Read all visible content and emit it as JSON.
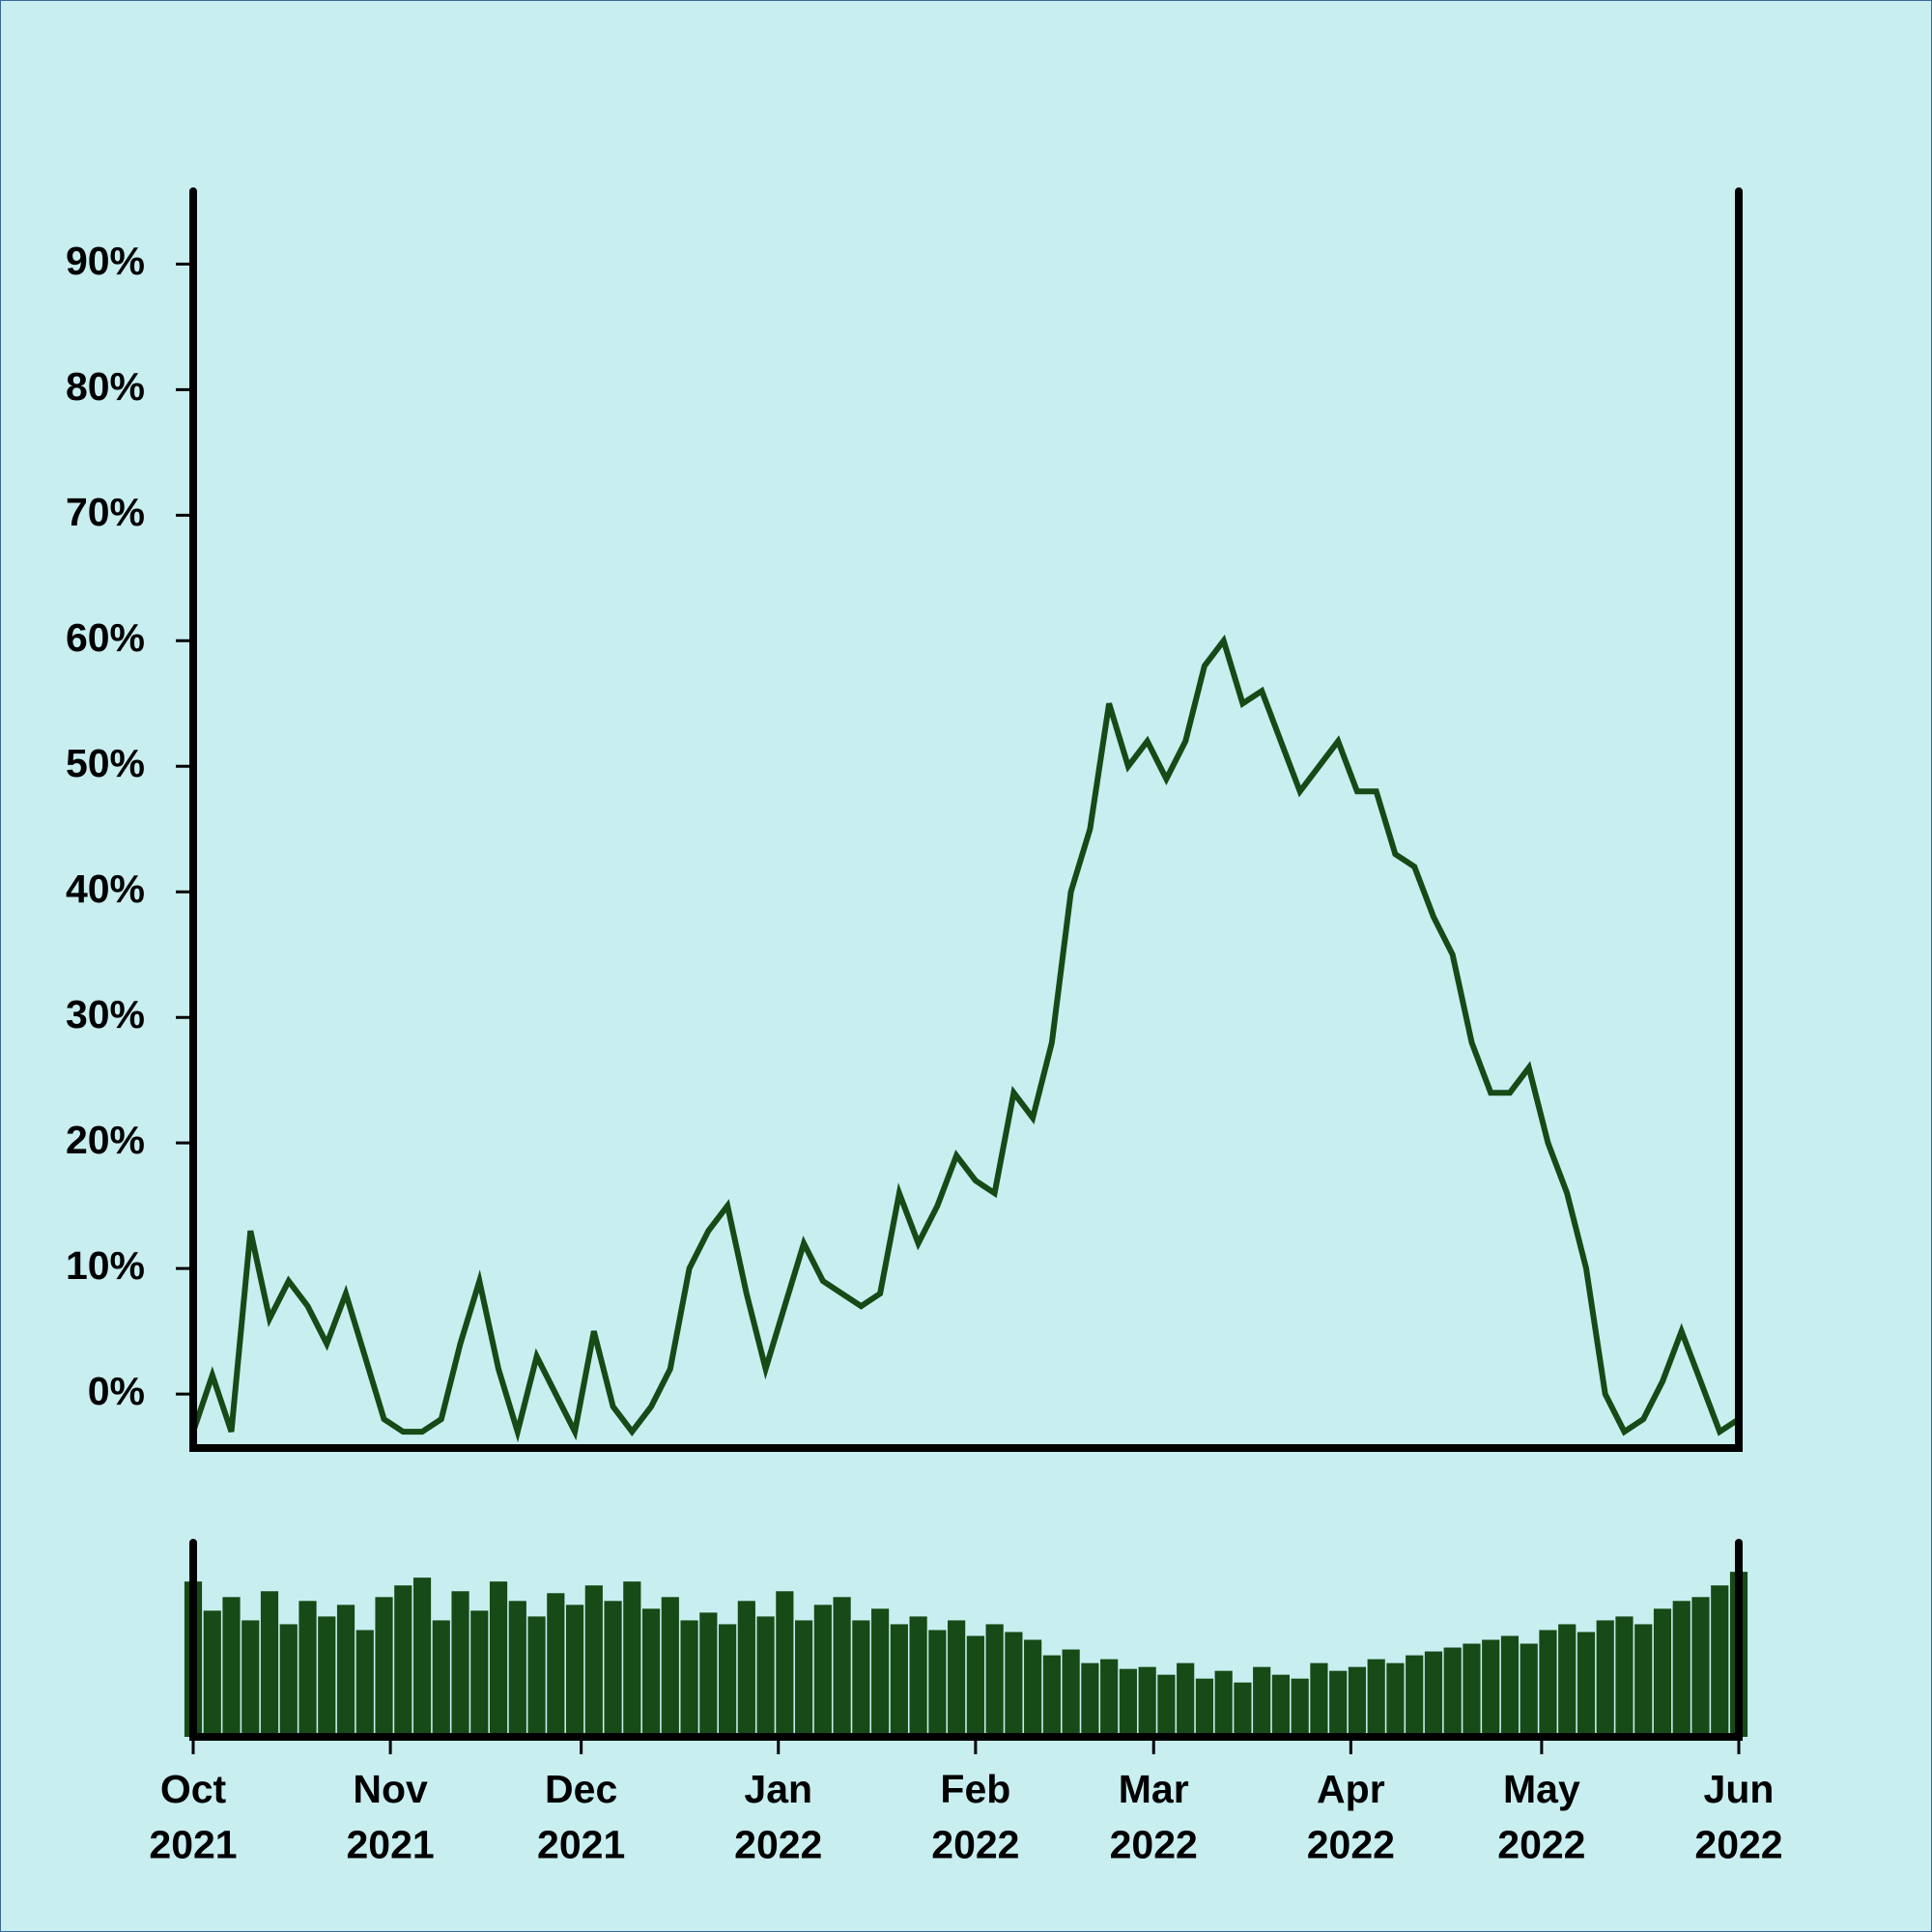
{
  "chart_data": [
    {
      "type": "line",
      "color": "#164a16",
      "x": [
        0,
        3,
        6,
        9,
        12,
        15,
        18,
        21,
        24,
        27,
        30,
        33,
        36,
        39,
        42,
        45,
        48,
        51,
        54,
        57,
        60,
        63,
        66,
        69,
        72,
        75,
        78,
        81,
        84,
        87,
        90,
        93,
        96,
        99,
        102,
        105,
        108,
        111,
        114,
        117,
        120,
        123,
        126,
        129,
        132,
        135,
        138,
        141,
        144,
        147,
        150,
        153,
        156,
        159,
        162,
        165,
        168,
        171,
        174,
        177,
        180,
        183,
        186,
        189,
        192,
        195,
        198,
        201,
        204,
        207,
        210,
        213,
        216,
        219,
        222,
        225,
        228,
        231,
        234,
        237,
        240,
        243
      ],
      "values": [
        -3,
        1.5,
        -3,
        13,
        6,
        9,
        7,
        4,
        8,
        3,
        -2,
        -3,
        -3,
        -2,
        4,
        9,
        2,
        -3,
        3,
        0,
        -3,
        5,
        -1,
        -3,
        -1,
        2,
        10,
        13,
        15,
        8,
        2,
        7,
        12,
        9,
        8,
        7,
        8,
        16,
        12,
        15,
        19,
        17,
        16,
        24,
        22,
        28,
        40,
        45,
        55,
        50,
        52,
        49,
        52,
        58,
        60,
        55,
        56,
        52,
        48,
        50,
        52,
        48,
        48,
        43,
        42,
        38,
        35,
        28,
        24,
        24,
        26,
        20,
        16,
        10,
        0,
        -3,
        -2,
        1,
        5,
        1,
        -3,
        -2
      ],
      "xlim": [
        0,
        243
      ],
      "ylim": [
        -4.3,
        95.8
      ],
      "yticks": [
        {
          "value": 0,
          "label": "0%"
        },
        {
          "value": 10,
          "label": "10%"
        },
        {
          "value": 20,
          "label": "20%"
        },
        {
          "value": 30,
          "label": "30%"
        },
        {
          "value": 40,
          "label": "40%"
        },
        {
          "value": 50,
          "label": "50%"
        },
        {
          "value": 60,
          "label": "60%"
        },
        {
          "value": 70,
          "label": "70%"
        },
        {
          "value": 80,
          "label": "80%"
        },
        {
          "value": 90,
          "label": "90%"
        }
      ]
    },
    {
      "type": "bar",
      "color": "#164a16",
      "x": [
        0,
        3,
        6,
        9,
        12,
        15,
        18,
        21,
        24,
        27,
        30,
        33,
        36,
        39,
        42,
        45,
        48,
        51,
        54,
        57,
        60,
        63,
        66,
        69,
        72,
        75,
        78,
        81,
        84,
        87,
        90,
        93,
        96,
        99,
        102,
        105,
        108,
        111,
        114,
        117,
        120,
        123,
        126,
        129,
        132,
        135,
        138,
        141,
        144,
        147,
        150,
        153,
        156,
        159,
        162,
        165,
        168,
        171,
        174,
        177,
        180,
        183,
        186,
        189,
        192,
        195,
        198,
        201,
        204,
        207,
        210,
        213,
        216,
        219,
        222,
        225,
        228,
        231,
        234,
        237,
        240,
        243
      ],
      "values": [
        80,
        65,
        72,
        60,
        75,
        58,
        70,
        62,
        68,
        55,
        72,
        78,
        82,
        60,
        75,
        65,
        80,
        70,
        62,
        74,
        68,
        78,
        70,
        80,
        66,
        72,
        60,
        64,
        58,
        70,
        62,
        75,
        60,
        68,
        72,
        60,
        66,
        58,
        62,
        55,
        60,
        52,
        58,
        54,
        50,
        42,
        45,
        38,
        40,
        35,
        36,
        32,
        38,
        30,
        34,
        28,
        36,
        32,
        30,
        38,
        34,
        36,
        40,
        38,
        42,
        44,
        46,
        48,
        50,
        52,
        48,
        55,
        58,
        54,
        60,
        62,
        58,
        66,
        70,
        72,
        78,
        85
      ],
      "xlim": [
        0,
        243
      ],
      "ylim": [
        0,
        100
      ],
      "xticks": [
        {
          "value": 0,
          "label": "Oct\n2021"
        },
        {
          "value": 31,
          "label": "Nov\n2021"
        },
        {
          "value": 61,
          "label": "Dec\n2021"
        },
        {
          "value": 92,
          "label": "Jan\n2022"
        },
        {
          "value": 123,
          "label": "Feb\n2022"
        },
        {
          "value": 151,
          "label": "Mar\n2022"
        },
        {
          "value": 182,
          "label": "Apr\n2022"
        },
        {
          "value": 212,
          "label": "May\n2022"
        },
        {
          "value": 243,
          "label": "Jun\n2022"
        }
      ]
    }
  ]
}
